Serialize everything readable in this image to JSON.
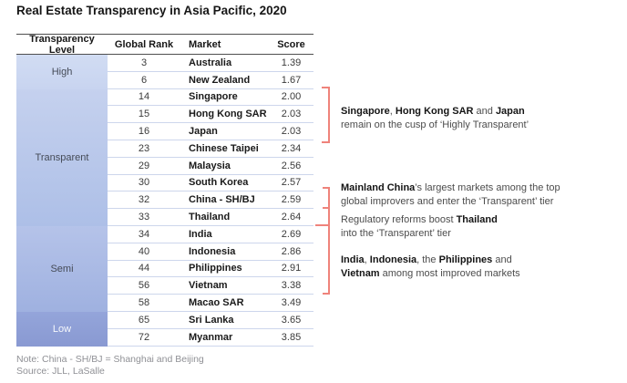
{
  "colors": {
    "accent_bracket": "#ef837b",
    "table_rule": "#4f4f4f",
    "row_separator": "#cdd6ec"
  },
  "chart_data": {
    "type": "table",
    "title": "Real Estate Transparency in Asia Pacific, 2020",
    "columns": [
      "Transparency Level",
      "Global Rank",
      "Market",
      "Score"
    ],
    "levels": [
      {
        "label": "High",
        "fg": "#454b57",
        "bg_top": "#d1dcf3",
        "bg_bottom": "#c8d4f0",
        "markets": [
          {
            "rank": "3",
            "market": "Australia",
            "score": "1.39"
          },
          {
            "rank": "6",
            "market": "New Zealand",
            "score": "1.67"
          }
        ]
      },
      {
        "label": "Transparent",
        "fg": "#454b57",
        "bg_top": "#c5d1ee",
        "bg_bottom": "#adbfe7",
        "markets": [
          {
            "rank": "14",
            "market": "Singapore",
            "score": "2.00"
          },
          {
            "rank": "15",
            "market": "Hong Kong SAR",
            "score": "2.03"
          },
          {
            "rank": "16",
            "market": "Japan",
            "score": "2.03"
          },
          {
            "rank": "23",
            "market": "Chinese Taipei",
            "score": "2.34"
          },
          {
            "rank": "29",
            "market": "Malaysia",
            "score": "2.56"
          },
          {
            "rank": "30",
            "market": "South Korea",
            "score": "2.57"
          },
          {
            "rank": "32",
            "market": "China - SH/BJ",
            "score": "2.59"
          },
          {
            "rank": "33",
            "market": "Thailand",
            "score": "2.64"
          }
        ]
      },
      {
        "label": "Semi",
        "fg": "#454b57",
        "bg_top": "#b5c3e9",
        "bg_bottom": "#9fb1e0",
        "markets": [
          {
            "rank": "34",
            "market": "India",
            "score": "2.69"
          },
          {
            "rank": "40",
            "market": "Indonesia",
            "score": "2.86"
          },
          {
            "rank": "44",
            "market": "Philippines",
            "score": "2.91"
          },
          {
            "rank": "56",
            "market": "Vietnam",
            "score": "3.38"
          },
          {
            "rank": "58",
            "market": "Macao SAR",
            "score": "3.49"
          }
        ]
      },
      {
        "label": "Low",
        "fg": "#f6f8fc",
        "bg_top": "#94a5da",
        "bg_bottom": "#8999d2",
        "markets": [
          {
            "rank": "65",
            "market": "Sri Lanka",
            "score": "3.65"
          },
          {
            "rank": "72",
            "market": "Myanmar",
            "score": "3.85"
          }
        ]
      }
    ],
    "annotations": [
      {
        "lines": [
          [
            {
              "t": "Singapore",
              "b": true
            },
            {
              "t": ", ",
              "b": false
            },
            {
              "t": "Hong Kong SAR",
              "b": true
            },
            {
              "t": " and ",
              "b": false
            },
            {
              "t": "Japan",
              "b": true
            }
          ],
          [
            {
              "t": "remain on the cusp of ‘Highly Transparent’",
              "b": false
            }
          ]
        ]
      },
      {
        "lines": [
          [
            {
              "t": "Mainland China",
              "b": true
            },
            {
              "t": "’s largest markets among the top",
              "b": false
            }
          ],
          [
            {
              "t": "global improvers and enter the ‘Transparent’ tier",
              "b": false
            }
          ]
        ]
      },
      {
        "lines": [
          [
            {
              "t": "Regulatory reforms boost ",
              "b": false
            },
            {
              "t": "Thailand",
              "b": true
            }
          ],
          [
            {
              "t": "into the ‘Transparent’ tier",
              "b": false
            }
          ]
        ]
      },
      {
        "lines": [
          [
            {
              "t": "India",
              "b": true
            },
            {
              "t": ", ",
              "b": false
            },
            {
              "t": "Indonesia",
              "b": true
            },
            {
              "t": ", the ",
              "b": false
            },
            {
              "t": "Philippines",
              "b": true
            },
            {
              "t": " and",
              "b": false
            }
          ],
          [
            {
              "t": "Vietnam",
              "b": true
            },
            {
              "t": " among most improved markets",
              "b": false
            }
          ]
        ]
      }
    ],
    "notes": [
      "Note: China - SH/BJ = Shanghai and Beijing",
      "Source: JLL, LaSalle"
    ]
  }
}
